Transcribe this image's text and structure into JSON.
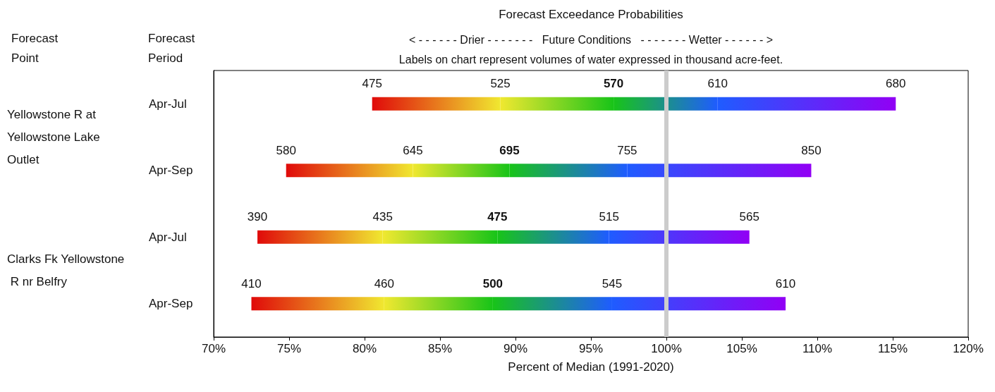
{
  "chart_data": {
    "type": "bar",
    "orientation": "horizontal",
    "title": "Forecast Exceedance Probabilities",
    "subtitle": "< - - - - - - Drier - - - - - - -   Future Conditions   - - - - - - - Wetter - - - - - - >",
    "ylabel": "Forecast Period",
    "xlabel": "Percent of Median (1991-2020)",
    "annotations": [
      "Forecast Point",
      "Yellowstone R at Yellowstone Lake Outlet",
      "Clarks Fk Yellowstone R nr Belfry",
      "Labels on chart represent volumes of water expressed in thousand acre-feet.",
      "475",
      "525",
      "570",
      "610",
      "680",
      "580",
      "645",
      "695",
      "755",
      "850",
      "390",
      "435",
      "475",
      "515",
      "565",
      "410",
      "460",
      "500",
      "545",
      "610"
    ],
    "categories": [
      "Apr-Jul",
      "Apr-Sep",
      "Apr-Jul",
      "Apr-Sep"
    ],
    "series": [
      {
        "type": "bar",
        "color": "#e00a0a",
        "base": [
          80.5,
          74.8,
          72.9,
          72.5
        ],
        "values": [
          8.5,
          8.4,
          8.3,
          8.8
        ]
      },
      {
        "type": "bar",
        "color": "#f0e830",
        "base": [
          89.0,
          83.2,
          81.2,
          81.3
        ],
        "values": [
          7.5,
          6.4,
          7.6,
          7.2
        ]
      },
      {
        "type": "bar",
        "color": "#18c418",
        "base": [
          96.5,
          89.6,
          88.8,
          88.5
        ],
        "values": [
          6.9,
          7.8,
          7.4,
          7.9
        ]
      },
      {
        "type": "bar",
        "color": "#1f5cff",
        "base": [
          103.4,
          97.4,
          96.2,
          96.4
        ],
        "values": [
          11.8,
          12.2,
          9.3,
          11.5
        ]
      }
    ],
    "xlim": [
      70,
      120
    ],
    "xticks": [
      {
        "value": 70,
        "label": "70%"
      },
      {
        "value": 75,
        "label": "75%"
      },
      {
        "value": 80,
        "label": "80%"
      },
      {
        "value": 85,
        "label": "85%"
      },
      {
        "value": 90,
        "label": "90%"
      },
      {
        "value": 95,
        "label": "95%"
      },
      {
        "value": 100,
        "label": "100%"
      },
      {
        "value": 105,
        "label": "105%"
      },
      {
        "value": 110,
        "label": "110%"
      },
      {
        "value": 115,
        "label": "115%"
      },
      {
        "value": 120,
        "label": "120%"
      }
    ],
    "ref_lines": [
      {
        "axis": "x",
        "value": 100,
        "label": null,
        "color": "#cccccc"
      }
    ],
    "grid": false
  }
}
